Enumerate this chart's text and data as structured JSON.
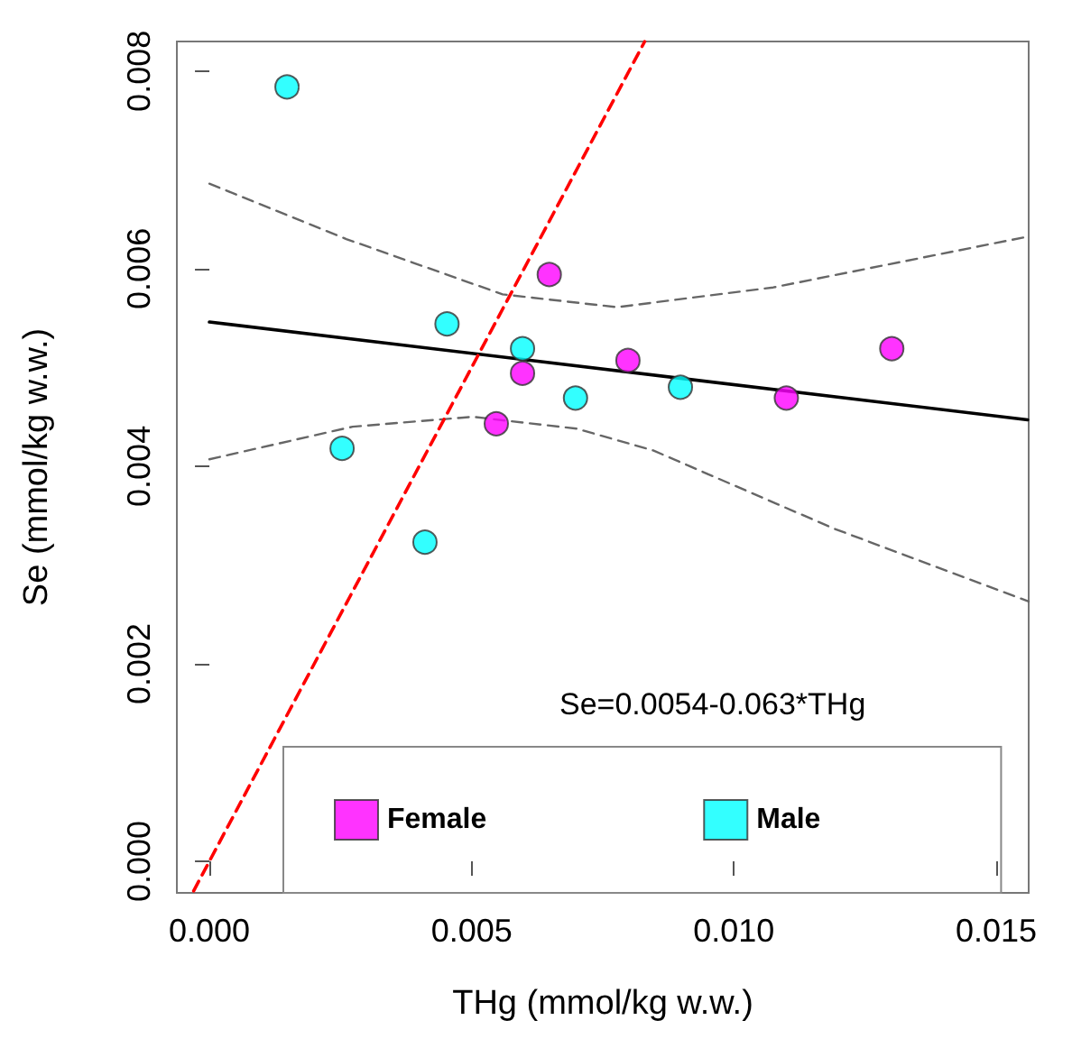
{
  "chart_data": {
    "type": "scatter",
    "xlabel": "THg (mmol/kg w.w.)",
    "ylabel": "Se (mmol/kg w.w.)",
    "annotations": [
      "Se=0.0054-0.063*THg"
    ],
    "xlim": [
      -0.00062,
      0.01562
    ],
    "ylim": [
      -0.00032,
      0.0083
    ],
    "xticks": [
      {
        "value": 0,
        "label": "0.000"
      },
      {
        "value": 0.005,
        "label": "0.005"
      },
      {
        "value": 0.01,
        "label": "0.010"
      },
      {
        "value": 0.015,
        "label": "0.015"
      }
    ],
    "yticks": [
      {
        "value": 0,
        "label": "0.000"
      },
      {
        "value": 0.002,
        "label": "0.002"
      },
      {
        "value": 0.004,
        "label": "0.004"
      },
      {
        "value": 0.006,
        "label": "0.006"
      },
      {
        "value": 0.008,
        "label": "0.008"
      }
    ],
    "grid": false,
    "legend": "bottom",
    "marker": "circle",
    "series": [
      {
        "name": "Female",
        "color": "#ff00ff",
        "x": [
          0.00648,
          0.00597,
          0.00798,
          0.011,
          0.01301,
          0.00547
        ],
        "values": [
          0.00594,
          0.00494,
          0.00507,
          0.00469,
          0.00519,
          0.00443
        ]
      },
      {
        "name": "Male",
        "color": "#00ffff",
        "x": [
          0.00148,
          0.00453,
          0.00597,
          0.00698,
          0.00898,
          0.00253,
          0.00411
        ],
        "values": [
          0.00784,
          0.00544,
          0.00519,
          0.00469,
          0.0048,
          0.00418,
          0.00323
        ]
      },
      {
        "type": "line",
        "marker": "none",
        "color": "#000000",
        "line_style": "solid",
        "x": [
          0,
          0.0156
        ],
        "values": [
          0.00546,
          0.00447
        ]
      },
      {
        "type": "line",
        "marker": "none",
        "color": "#666666",
        "line_style": "dashed",
        "x": [
          0,
          0.00261,
          0.00559,
          0.00777,
          0.01075,
          0.01556
        ],
        "values": [
          0.00686,
          0.0063,
          0.00574,
          0.00561,
          0.00581,
          0.00632
        ]
      },
      {
        "type": "line",
        "marker": "none",
        "color": "#666666",
        "line_style": "dashed",
        "x": [
          0,
          0.00273,
          0.00502,
          0.007,
          0.00846,
          0.0119,
          0.01562
        ],
        "values": [
          0.00407,
          0.0044,
          0.0045,
          0.00438,
          0.00416,
          0.00337,
          0.00263
        ]
      },
      {
        "type": "line",
        "marker": "none",
        "color": "#ff0000",
        "line_style": "dashed",
        "x": [
          -0.0003,
          0.0083
        ],
        "values": [
          -0.0003,
          0.0083
        ]
      }
    ]
  }
}
